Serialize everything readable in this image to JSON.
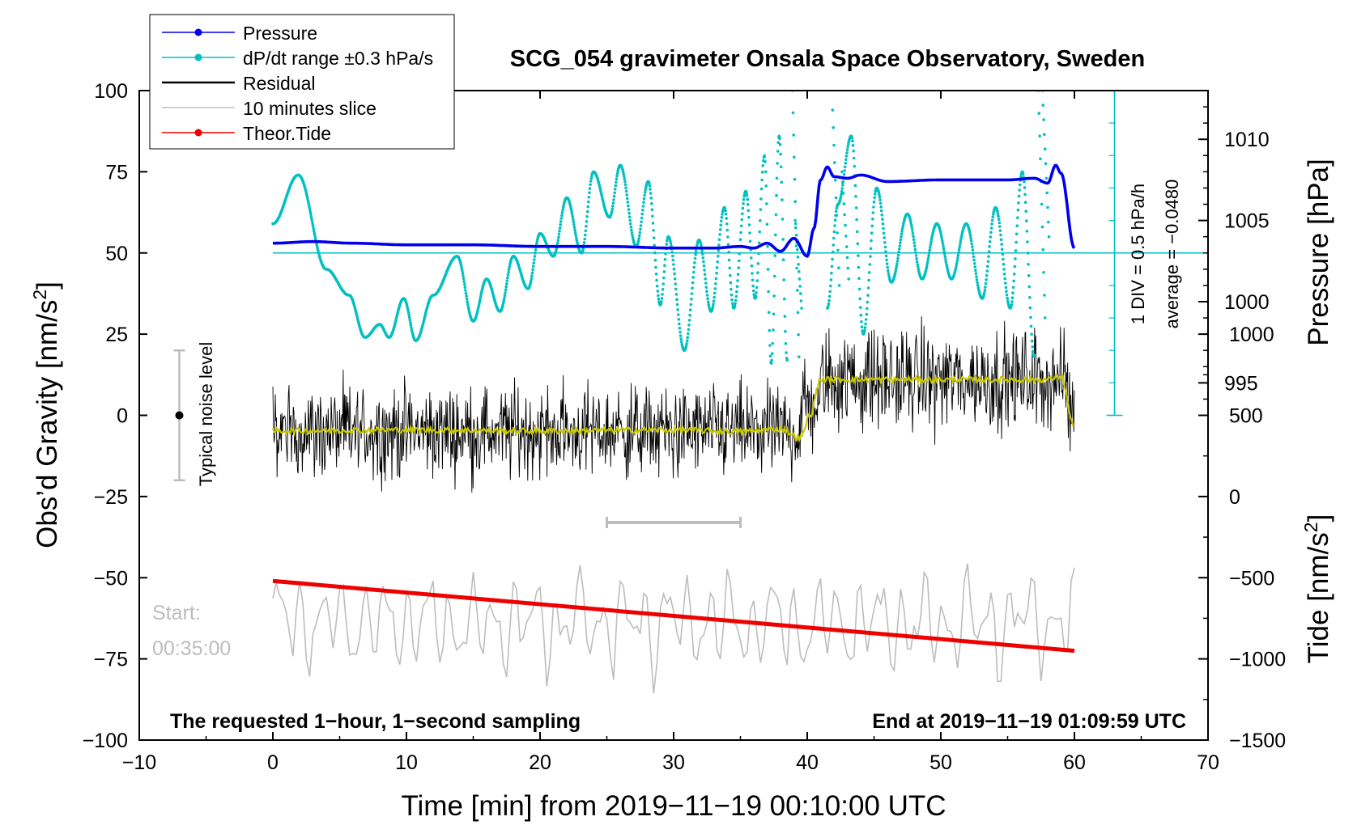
{
  "chart_data": {
    "type": "line",
    "title": "SCG_054 gravimeter Onsala Space Observatory, Sweden",
    "xlabel": "Time [min] from 2019−11−19 00:10:00 UTC",
    "ylabel_left": "Obs’d Gravity [nm/s",
    "ylabel_left_sup": "2",
    "ylabel_left_close": "]",
    "ylabel_pressure": "Pressure [hPa]",
    "ylabel_tide": "Tide [nm/s",
    "ylabel_tide_sup": "2",
    "ylabel_tide_close": "]",
    "xlim": [
      -10,
      70
    ],
    "ylim": [
      -100,
      100
    ],
    "x_ticks": [
      "−10",
      "0",
      "10",
      "20",
      "30",
      "40",
      "50",
      "60",
      "70"
    ],
    "x_tick_values": [
      -10,
      0,
      10,
      20,
      30,
      40,
      50,
      60,
      70
    ],
    "y_ticks": [
      "−100",
      "−75",
      "−50",
      "−25",
      "0",
      "25",
      "50",
      "75",
      "100"
    ],
    "y_tick_values": [
      -100,
      -75,
      -50,
      -25,
      0,
      25,
      50,
      75,
      100
    ],
    "pressure_ticks": [
      "995",
      "1000",
      "1005",
      "1010"
    ],
    "pressure_tick_values": [
      995,
      1000,
      1005,
      1010
    ],
    "pressure_axis_map": {
      "p0": 1003,
      "y0": 50,
      "slope": 5
    },
    "tide_ticks": [
      "−1500",
      "−1000",
      "−500",
      "0",
      "500",
      "1000"
    ],
    "tide_tick_values": [
      -1500,
      -1000,
      -500,
      0,
      500,
      1000
    ],
    "tide_axis_map": {
      "t0": -1500,
      "y0": -100,
      "slope": 0.05
    },
    "legend": [
      {
        "label": "Pressure",
        "color": "#0000ee"
      },
      {
        "label": "dP/dt range ±0.3 hPa/s",
        "color": "#00c0c0"
      },
      {
        "label": "Residual",
        "color": "#000000"
      },
      {
        "label": "10 minutes slice",
        "color": "#bdbdbd"
      },
      {
        "label": "Theor.Tide",
        "color": "#ee0000"
      }
    ],
    "annotations": {
      "bottom_left": "The requested 1−hour, 1−second sampling",
      "bottom_right": "End at 2019−11−19 01:09:59 UTC",
      "start_label": "Start:",
      "start_time": "00:35:00",
      "noise_label": "Typical noise level",
      "div_label": "1 DIV = 0.5 hPa/h",
      "average_label": "average = −0.0480"
    },
    "noise_bar": {
      "x": -7,
      "center": 0,
      "low": -20,
      "high": 20
    },
    "slice_marker": {
      "x_start": 25,
      "x_end": 35,
      "y": -33
    },
    "dpdt_scale_bar": {
      "x": 63,
      "y_top": 100,
      "y_bottom": 0,
      "baseline_y": 50
    },
    "series": [
      {
        "name": "Pressure",
        "color": "#0000ee",
        "x": [
          0,
          3,
          6,
          10,
          15,
          20,
          25,
          30,
          33,
          35,
          36,
          37,
          38,
          39,
          40,
          40.5,
          41,
          41.5,
          42,
          43,
          44,
          46,
          50,
          55,
          57,
          58,
          58.6,
          59,
          60
        ],
        "y_hpa": [
          1003.6,
          1003.7,
          1003.6,
          1003.5,
          1003.5,
          1003.4,
          1003.4,
          1003.3,
          1003.3,
          1003.4,
          1003.3,
          1003.6,
          1003.1,
          1003.9,
          1002.8,
          1004.5,
          1007.5,
          1008.3,
          1007.7,
          1007.6,
          1007.8,
          1007.4,
          1007.5,
          1007.5,
          1007.6,
          1007.3,
          1008.4,
          1007.9,
          1003.3
        ]
      },
      {
        "name": "dP/dt range ±0.3 hPa/s",
        "color": "#00c0c0",
        "x": [
          0,
          1.9,
          4,
          5.7,
          6.9,
          8,
          8.7,
          9.8,
          10.7,
          12,
          13.8,
          15,
          16,
          17,
          18,
          19.1,
          20,
          21,
          22,
          23.1,
          24,
          25.2,
          26,
          27.2,
          28.1,
          29,
          29.6,
          30.8,
          31.9,
          32.8,
          33.8,
          34.5,
          35.4,
          36.1,
          36.8,
          37.3,
          37.9,
          38.5
        ],
        "y": [
          59,
          74,
          45,
          37,
          24,
          28,
          24,
          36,
          23,
          37,
          49,
          29,
          42,
          32,
          49,
          39,
          56,
          49,
          67,
          50,
          75,
          61,
          77,
          52,
          72,
          34,
          55,
          20,
          54,
          32,
          64,
          33,
          69,
          36,
          80,
          16,
          86,
          17
        ]
      },
      {
        "name": "dP/dt range (right segment)",
        "color": "#00c0c0",
        "x": [
          41.5,
          42.3,
          43.3,
          44.2,
          45.2,
          46.3,
          47.5,
          48.6,
          49.7,
          50.8,
          51.9,
          53.1,
          54.1,
          55.2,
          56.1,
          57
        ],
        "y": [
          33,
          65,
          86,
          25,
          70,
          41,
          62,
          42,
          59,
          42,
          59,
          36,
          64,
          33,
          75,
          18
        ]
      },
      {
        "name": "Residual",
        "color": "#000000",
        "segments": [
          {
            "x_start": 0,
            "x_end": 39.5,
            "mean": -5,
            "amp": 12
          },
          {
            "x_start": 39.5,
            "x_end": 41,
            "mean": 3,
            "amp": 12
          },
          {
            "x_start": 41,
            "x_end": 59.5,
            "mean": 11,
            "amp": 13
          },
          {
            "x_start": 59.5,
            "x_end": 60,
            "mean": 2,
            "amp": 12
          }
        ]
      },
      {
        "name": "Residual smoothed",
        "color": "#c8c800",
        "x": [
          0,
          10,
          20,
          30,
          35,
          38,
          39.5,
          40.2,
          41,
          45,
          50,
          55,
          58,
          59,
          60
        ],
        "y": [
          -4.8,
          -4.5,
          -4.8,
          -4.5,
          -5.0,
          -4.2,
          -7.0,
          0,
          11,
          11,
          11,
          11,
          11,
          12,
          -4
        ]
      },
      {
        "name": "10 minutes slice",
        "color": "#bdbdbd",
        "mean": -64,
        "amp": 15,
        "x_start": 0,
        "x_end": 60,
        "y_min": -91,
        "y_max": -37
      },
      {
        "name": "Theor.Tide",
        "color": "#ee0000",
        "x": [
          0,
          60
        ],
        "y_tide": [
          -520,
          -950
        ]
      }
    ]
  }
}
